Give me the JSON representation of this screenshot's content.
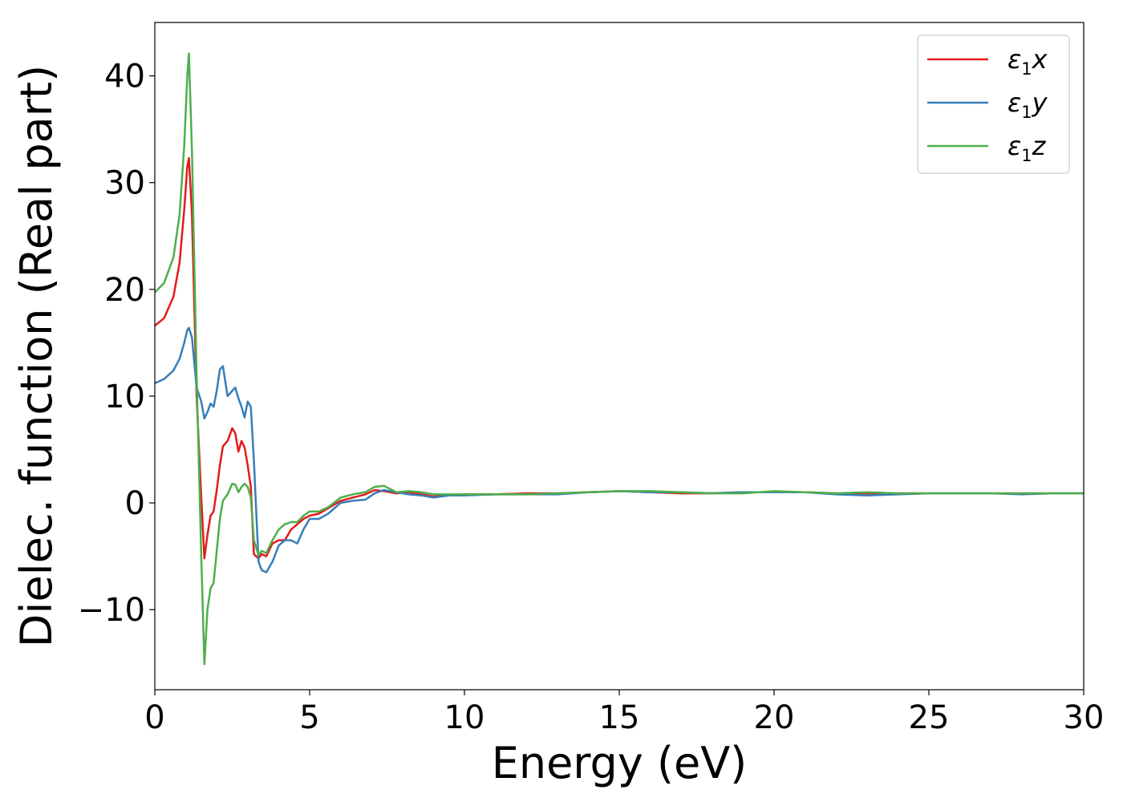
{
  "chart_data": {
    "type": "line",
    "xlabel": "Energy (eV)",
    "ylabel": "Dielec. function (Real part)",
    "xlim": [
      0,
      30
    ],
    "ylim": [
      -17.5,
      45
    ],
    "xticks": [
      0,
      5,
      10,
      15,
      20,
      25,
      30
    ],
    "xtick_labels": [
      "0",
      "5",
      "10",
      "15",
      "20",
      "25",
      "30"
    ],
    "yticks": [
      -10,
      0,
      10,
      20,
      30,
      40
    ],
    "ytick_labels": [
      "−10",
      "0",
      "10",
      "20",
      "30",
      "40"
    ],
    "grid": false,
    "legend_position": "top-right",
    "series": [
      {
        "name": "ε1x",
        "legend": {
          "base": "ε",
          "sub": "1",
          "var": "x"
        },
        "color": "#e41a1c",
        "x": [
          0,
          0.3,
          0.6,
          0.8,
          0.95,
          1.05,
          1.1,
          1.2,
          1.35,
          1.5,
          1.6,
          1.7,
          1.8,
          1.9,
          2.0,
          2.1,
          2.2,
          2.35,
          2.5,
          2.6,
          2.7,
          2.8,
          2.9,
          3.0,
          3.1,
          3.2,
          3.35,
          3.45,
          3.6,
          3.8,
          4.0,
          4.2,
          4.4,
          4.6,
          4.8,
          5.0,
          5.3,
          5.6,
          6.0,
          6.4,
          6.8,
          7.1,
          7.4,
          7.8,
          8.2,
          8.6,
          9.0,
          9.5,
          10,
          11,
          12,
          13,
          14,
          15,
          16,
          17,
          18,
          19,
          20,
          21,
          22,
          23,
          24,
          25,
          26,
          27,
          28,
          29,
          30
        ],
        "y": [
          16.6,
          17.3,
          19.3,
          22.5,
          27.5,
          31.5,
          32.3,
          27.0,
          10.0,
          0.5,
          -5.2,
          -3.0,
          -1.2,
          -0.8,
          1.2,
          3.5,
          5.3,
          5.8,
          7.0,
          6.5,
          4.8,
          5.8,
          5.2,
          3.5,
          1.5,
          -4.8,
          -5.2,
          -4.8,
          -5.0,
          -3.8,
          -3.5,
          -3.5,
          -2.5,
          -2.0,
          -1.5,
          -1.2,
          -1.0,
          -0.5,
          0.2,
          0.5,
          0.8,
          1.2,
          1.1,
          0.9,
          1.0,
          0.8,
          0.6,
          0.7,
          0.8,
          0.8,
          0.9,
          0.9,
          1.0,
          1.1,
          1.0,
          0.9,
          0.9,
          1.0,
          1.0,
          1.0,
          0.9,
          0.9,
          0.9,
          0.9,
          0.9,
          0.9,
          0.9,
          0.9,
          0.9
        ]
      },
      {
        "name": "ε1y",
        "legend": {
          "base": "ε",
          "sub": "1",
          "var": "y"
        },
        "color": "#377eb8",
        "x": [
          0,
          0.3,
          0.6,
          0.8,
          0.95,
          1.05,
          1.1,
          1.2,
          1.35,
          1.5,
          1.6,
          1.7,
          1.8,
          1.9,
          2.0,
          2.1,
          2.2,
          2.35,
          2.5,
          2.6,
          2.7,
          2.8,
          2.9,
          3.0,
          3.1,
          3.2,
          3.35,
          3.45,
          3.6,
          3.8,
          4.0,
          4.2,
          4.4,
          4.6,
          4.8,
          5.0,
          5.3,
          5.6,
          6.0,
          6.4,
          6.8,
          7.1,
          7.4,
          7.8,
          8.2,
          8.6,
          9.0,
          9.5,
          10,
          11,
          12,
          13,
          14,
          15,
          16,
          17,
          18,
          19,
          20,
          21,
          22,
          23,
          24,
          25,
          26,
          27,
          28,
          29,
          30
        ],
        "y": [
          11.2,
          11.6,
          12.4,
          13.5,
          15.0,
          16.2,
          16.4,
          15.5,
          10.8,
          9.5,
          7.9,
          8.5,
          9.3,
          9.0,
          10.5,
          12.5,
          12.8,
          10.0,
          10.5,
          10.8,
          9.8,
          9.0,
          8.0,
          9.5,
          9.0,
          4.0,
          -5.5,
          -6.3,
          -6.5,
          -5.5,
          -4.0,
          -3.5,
          -3.5,
          -3.8,
          -2.5,
          -1.5,
          -1.5,
          -1.0,
          0.0,
          0.2,
          0.3,
          0.9,
          1.2,
          1.0,
          0.8,
          0.7,
          0.5,
          0.7,
          0.7,
          0.8,
          0.8,
          0.8,
          1.0,
          1.1,
          1.0,
          1.0,
          0.9,
          1.0,
          1.0,
          1.0,
          0.8,
          0.7,
          0.8,
          0.9,
          0.9,
          0.9,
          0.8,
          0.9,
          0.9
        ]
      },
      {
        "name": "ε1z",
        "legend": {
          "base": "ε",
          "sub": "1",
          "var": "z"
        },
        "color": "#4daf4a",
        "x": [
          0,
          0.3,
          0.6,
          0.8,
          0.95,
          1.05,
          1.1,
          1.2,
          1.35,
          1.5,
          1.6,
          1.7,
          1.8,
          1.9,
          2.0,
          2.1,
          2.2,
          2.35,
          2.5,
          2.6,
          2.7,
          2.8,
          2.9,
          3.0,
          3.1,
          3.2,
          3.35,
          3.45,
          3.6,
          3.8,
          4.0,
          4.2,
          4.4,
          4.6,
          4.8,
          5.0,
          5.3,
          5.6,
          6.0,
          6.4,
          6.8,
          7.1,
          7.4,
          7.8,
          8.2,
          8.6,
          9.0,
          9.5,
          10,
          11,
          12,
          13,
          14,
          15,
          16,
          17,
          18,
          19,
          20,
          21,
          22,
          23,
          24,
          25,
          26,
          27,
          28,
          29,
          30
        ],
        "y": [
          19.7,
          20.6,
          23.0,
          27.0,
          33.5,
          40.0,
          42.1,
          33.0,
          12.0,
          -5.0,
          -15.1,
          -10.0,
          -8.0,
          -7.5,
          -4.5,
          -1.5,
          0.2,
          0.8,
          1.8,
          1.7,
          1.0,
          1.5,
          1.8,
          1.5,
          0.5,
          -3.5,
          -4.9,
          -4.5,
          -4.7,
          -3.5,
          -2.5,
          -2.0,
          -1.8,
          -1.8,
          -1.2,
          -0.8,
          -0.8,
          -0.4,
          0.5,
          0.8,
          1.0,
          1.5,
          1.6,
          1.0,
          1.1,
          1.0,
          0.8,
          0.8,
          0.8,
          0.8,
          0.8,
          0.9,
          1.0,
          1.1,
          1.1,
          1.0,
          0.9,
          0.9,
          1.1,
          1.0,
          0.9,
          1.0,
          0.9,
          0.9,
          0.9,
          0.9,
          0.9,
          0.9,
          0.9
        ]
      }
    ]
  }
}
